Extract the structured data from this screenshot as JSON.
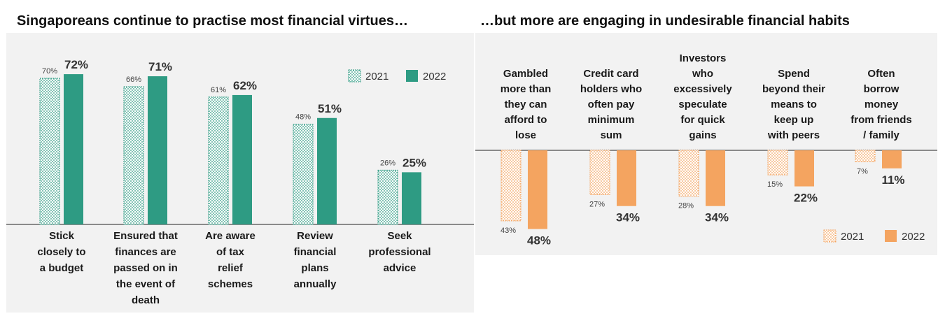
{
  "titles": {
    "left": "Singaporeans continue to practise most financial virtues…",
    "right": "…but more are engaging in undesirable financial habits"
  },
  "colors": {
    "teal": "#2e9b83",
    "orange": "#f4a460",
    "panel": "#f2f2f2"
  },
  "chart_data": [
    {
      "type": "bar",
      "title": "Singaporeans continue to practise most financial virtues…",
      "categories": [
        [
          "Stick",
          "closely to",
          "a budget"
        ],
        [
          "Ensured that",
          "finances are",
          "passed on in",
          "the event of",
          "death"
        ],
        [
          "Are aware",
          "of tax",
          "relief",
          "schemes"
        ],
        [
          "Review",
          "financial",
          "plans",
          "annually"
        ],
        [
          "Seek",
          "professional",
          "advice"
        ]
      ],
      "series": [
        {
          "name": "2021",
          "values": [
            70,
            66,
            61,
            48,
            26
          ],
          "labels": [
            "70%",
            "66%",
            "61%",
            "48%",
            "26%"
          ]
        },
        {
          "name": "2022",
          "values": [
            72,
            71,
            62,
            51,
            25
          ],
          "labels": [
            "72%",
            "71%",
            "62%",
            "51%",
            "25%"
          ]
        }
      ],
      "ylim": [
        0,
        100
      ],
      "legend": "top-right",
      "grid": false
    },
    {
      "type": "bar",
      "title": "…but more are engaging in undesirable financial habits",
      "orientation": "downward",
      "categories": [
        [
          "Gambled",
          "more than",
          "they can",
          "afford to",
          "lose"
        ],
        [
          "Credit card",
          "holders who",
          "often pay",
          "minimum",
          "sum"
        ],
        [
          "Investors",
          "who",
          "excessively",
          "speculate",
          "for quick",
          "gains"
        ],
        [
          "Spend",
          "beyond their",
          "means to",
          "keep up",
          "with peers"
        ],
        [
          "Often",
          "borrow",
          "money",
          "from friends",
          "/ family"
        ]
      ],
      "series": [
        {
          "name": "2021",
          "values": [
            43,
            27,
            28,
            15,
            7
          ],
          "labels": [
            "43%",
            "27%",
            "28%",
            "15%",
            "7%"
          ]
        },
        {
          "name": "2022",
          "values": [
            48,
            34,
            34,
            22,
            11
          ],
          "labels": [
            "48%",
            "34%",
            "34%",
            "22%",
            "11%"
          ]
        }
      ],
      "ylim": [
        0,
        100
      ],
      "legend": "bottom-right",
      "grid": false
    }
  ]
}
